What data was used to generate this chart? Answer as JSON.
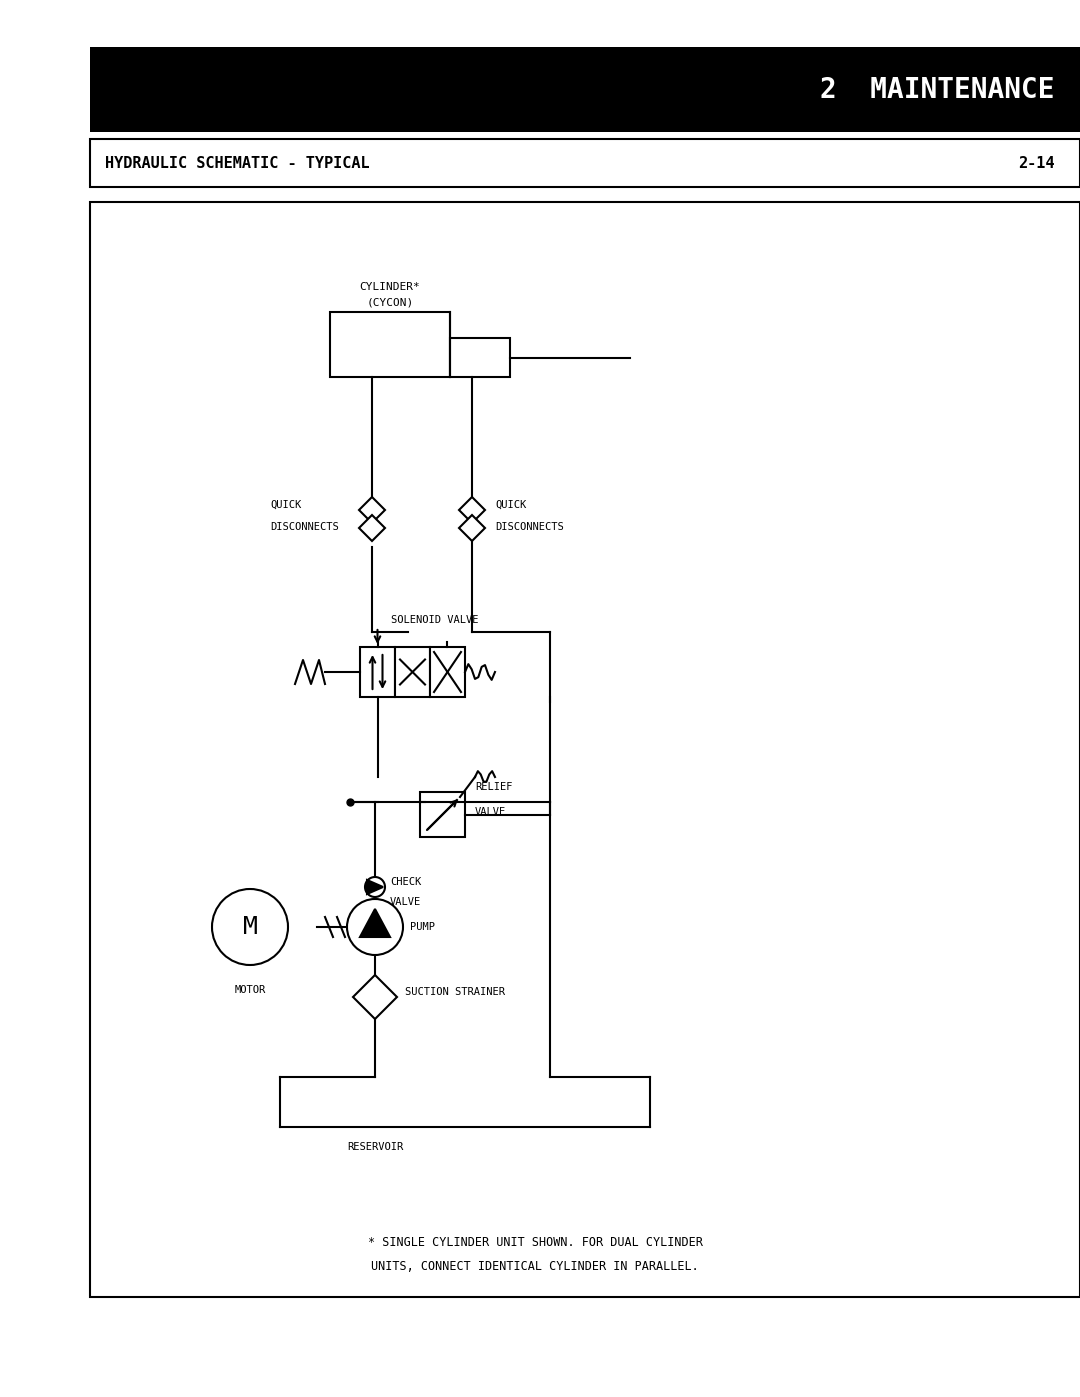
{
  "title_bar_text": "2  MAINTENANCE",
  "subtitle_text": "HYDRAULIC SCHEMATIC - TYPICAL",
  "page_num": "2-14",
  "footer_note_line1": "* SINGLE CYLINDER UNIT SHOWN. FOR DUAL CYLINDER",
  "footer_note_line2": "UNITS, CONNECT IDENTICAL CYLINDER IN PARALLEL.",
  "bg_color": "#ffffff",
  "title_bar_color": "#000000",
  "title_text_color": "#ffffff",
  "border_color": "#000000",
  "line_color": "#000000",
  "lw": 1.5
}
